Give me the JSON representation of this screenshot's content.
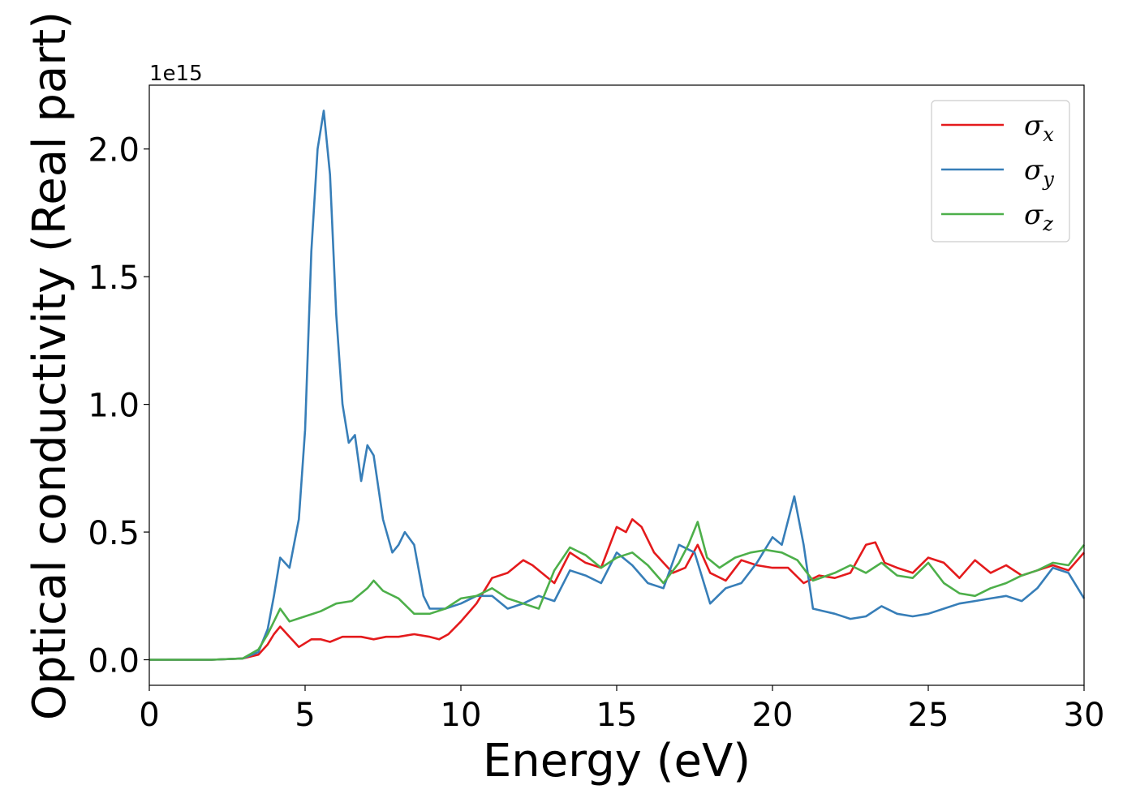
{
  "chart_data": {
    "type": "line",
    "xlabel": "Energy (eV)",
    "ylabel": "Optical conductivity (Real part)",
    "y_offset_label": "1e15",
    "y_scale": 1000000000000000.0,
    "xlim": [
      0,
      30
    ],
    "ylim": [
      -0.1,
      2.25
    ],
    "xticks": [
      0,
      5,
      10,
      15,
      20,
      25,
      30
    ],
    "xtick_labels": [
      "0",
      "5",
      "10",
      "15",
      "20",
      "25",
      "30"
    ],
    "yticks": [
      0.0,
      0.5,
      1.0,
      1.5,
      2.0
    ],
    "ytick_labels": [
      "0.0",
      "0.5",
      "1.0",
      "1.5",
      "2.0"
    ],
    "grid": false,
    "legend_position": "top-right",
    "series": [
      {
        "name": "σ",
        "subscript": "x",
        "color": "#e41a1c",
        "points": [
          [
            0,
            0.0
          ],
          [
            1,
            0.0
          ],
          [
            2,
            0.0
          ],
          [
            3,
            0.005
          ],
          [
            3.5,
            0.02
          ],
          [
            3.8,
            0.06
          ],
          [
            4.0,
            0.1
          ],
          [
            4.2,
            0.13
          ],
          [
            4.5,
            0.09
          ],
          [
            4.8,
            0.05
          ],
          [
            5.2,
            0.08
          ],
          [
            5.5,
            0.08
          ],
          [
            5.8,
            0.07
          ],
          [
            6.2,
            0.09
          ],
          [
            6.8,
            0.09
          ],
          [
            7.2,
            0.08
          ],
          [
            7.6,
            0.09
          ],
          [
            8.0,
            0.09
          ],
          [
            8.5,
            0.1
          ],
          [
            9.0,
            0.09
          ],
          [
            9.3,
            0.08
          ],
          [
            9.6,
            0.1
          ],
          [
            10.0,
            0.15
          ],
          [
            10.5,
            0.22
          ],
          [
            11.0,
            0.32
          ],
          [
            11.5,
            0.34
          ],
          [
            12.0,
            0.39
          ],
          [
            12.3,
            0.37
          ],
          [
            12.7,
            0.33
          ],
          [
            13.0,
            0.3
          ],
          [
            13.5,
            0.42
          ],
          [
            14.0,
            0.38
          ],
          [
            14.5,
            0.36
          ],
          [
            15.0,
            0.52
          ],
          [
            15.3,
            0.5
          ],
          [
            15.5,
            0.55
          ],
          [
            15.8,
            0.52
          ],
          [
            16.2,
            0.42
          ],
          [
            16.5,
            0.38
          ],
          [
            16.8,
            0.34
          ],
          [
            17.2,
            0.36
          ],
          [
            17.6,
            0.45
          ],
          [
            18.0,
            0.34
          ],
          [
            18.5,
            0.31
          ],
          [
            19.0,
            0.39
          ],
          [
            19.5,
            0.37
          ],
          [
            20.0,
            0.36
          ],
          [
            20.5,
            0.36
          ],
          [
            21.0,
            0.3
          ],
          [
            21.5,
            0.33
          ],
          [
            22.0,
            0.32
          ],
          [
            22.5,
            0.34
          ],
          [
            23.0,
            0.45
          ],
          [
            23.3,
            0.46
          ],
          [
            23.6,
            0.38
          ],
          [
            24.0,
            0.36
          ],
          [
            24.5,
            0.34
          ],
          [
            25.0,
            0.4
          ],
          [
            25.5,
            0.38
          ],
          [
            26.0,
            0.32
          ],
          [
            26.5,
            0.39
          ],
          [
            27.0,
            0.34
          ],
          [
            27.5,
            0.37
          ],
          [
            28.0,
            0.33
          ],
          [
            28.5,
            0.35
          ],
          [
            29.0,
            0.37
          ],
          [
            29.5,
            0.35
          ],
          [
            30.0,
            0.42
          ]
        ]
      },
      {
        "name": "σ",
        "subscript": "y",
        "color": "#377eb8",
        "points": [
          [
            0,
            0.0
          ],
          [
            1,
            0.0
          ],
          [
            2,
            0.0
          ],
          [
            3,
            0.005
          ],
          [
            3.5,
            0.03
          ],
          [
            3.8,
            0.12
          ],
          [
            4.0,
            0.25
          ],
          [
            4.2,
            0.4
          ],
          [
            4.5,
            0.36
          ],
          [
            4.8,
            0.55
          ],
          [
            5.0,
            0.9
          ],
          [
            5.2,
            1.6
          ],
          [
            5.4,
            2.0
          ],
          [
            5.6,
            2.15
          ],
          [
            5.8,
            1.9
          ],
          [
            6.0,
            1.35
          ],
          [
            6.2,
            1.0
          ],
          [
            6.4,
            0.85
          ],
          [
            6.6,
            0.88
          ],
          [
            6.8,
            0.7
          ],
          [
            7.0,
            0.84
          ],
          [
            7.2,
            0.8
          ],
          [
            7.5,
            0.55
          ],
          [
            7.8,
            0.42
          ],
          [
            8.0,
            0.45
          ],
          [
            8.2,
            0.5
          ],
          [
            8.5,
            0.45
          ],
          [
            8.8,
            0.25
          ],
          [
            9.0,
            0.2
          ],
          [
            9.5,
            0.2
          ],
          [
            10.0,
            0.22
          ],
          [
            10.5,
            0.25
          ],
          [
            11.0,
            0.25
          ],
          [
            11.5,
            0.2
          ],
          [
            12.0,
            0.22
          ],
          [
            12.5,
            0.25
          ],
          [
            13.0,
            0.23
          ],
          [
            13.5,
            0.35
          ],
          [
            14.0,
            0.33
          ],
          [
            14.5,
            0.3
          ],
          [
            15.0,
            0.42
          ],
          [
            15.5,
            0.37
          ],
          [
            16.0,
            0.3
          ],
          [
            16.5,
            0.28
          ],
          [
            17.0,
            0.45
          ],
          [
            17.5,
            0.42
          ],
          [
            18.0,
            0.22
          ],
          [
            18.5,
            0.28
          ],
          [
            19.0,
            0.3
          ],
          [
            19.5,
            0.38
          ],
          [
            20.0,
            0.48
          ],
          [
            20.3,
            0.45
          ],
          [
            20.7,
            0.64
          ],
          [
            21.0,
            0.45
          ],
          [
            21.3,
            0.2
          ],
          [
            22.0,
            0.18
          ],
          [
            22.5,
            0.16
          ],
          [
            23.0,
            0.17
          ],
          [
            23.5,
            0.21
          ],
          [
            24.0,
            0.18
          ],
          [
            24.5,
            0.17
          ],
          [
            25.0,
            0.18
          ],
          [
            25.5,
            0.2
          ],
          [
            26.0,
            0.22
          ],
          [
            26.5,
            0.23
          ],
          [
            27.0,
            0.24
          ],
          [
            27.5,
            0.25
          ],
          [
            28.0,
            0.23
          ],
          [
            28.5,
            0.28
          ],
          [
            29.0,
            0.36
          ],
          [
            29.5,
            0.34
          ],
          [
            30.0,
            0.24
          ]
        ]
      },
      {
        "name": "σ",
        "subscript": "z",
        "color": "#4daf4a",
        "points": [
          [
            0,
            0.0
          ],
          [
            1,
            0.0
          ],
          [
            2,
            0.0
          ],
          [
            3,
            0.005
          ],
          [
            3.5,
            0.04
          ],
          [
            3.8,
            0.1
          ],
          [
            4.0,
            0.15
          ],
          [
            4.2,
            0.2
          ],
          [
            4.5,
            0.15
          ],
          [
            5.0,
            0.17
          ],
          [
            5.5,
            0.19
          ],
          [
            6.0,
            0.22
          ],
          [
            6.5,
            0.23
          ],
          [
            7.0,
            0.28
          ],
          [
            7.2,
            0.31
          ],
          [
            7.5,
            0.27
          ],
          [
            8.0,
            0.24
          ],
          [
            8.5,
            0.18
          ],
          [
            9.0,
            0.18
          ],
          [
            9.5,
            0.2
          ],
          [
            10.0,
            0.24
          ],
          [
            10.5,
            0.25
          ],
          [
            11.0,
            0.28
          ],
          [
            11.5,
            0.24
          ],
          [
            12.0,
            0.22
          ],
          [
            12.5,
            0.2
          ],
          [
            13.0,
            0.35
          ],
          [
            13.5,
            0.44
          ],
          [
            14.0,
            0.41
          ],
          [
            14.5,
            0.36
          ],
          [
            15.0,
            0.4
          ],
          [
            15.5,
            0.42
          ],
          [
            16.0,
            0.37
          ],
          [
            16.5,
            0.3
          ],
          [
            17.0,
            0.38
          ],
          [
            17.3,
            0.45
          ],
          [
            17.6,
            0.54
          ],
          [
            17.9,
            0.4
          ],
          [
            18.3,
            0.36
          ],
          [
            18.8,
            0.4
          ],
          [
            19.3,
            0.42
          ],
          [
            19.8,
            0.43
          ],
          [
            20.3,
            0.42
          ],
          [
            20.8,
            0.39
          ],
          [
            21.3,
            0.31
          ],
          [
            22.0,
            0.34
          ],
          [
            22.5,
            0.37
          ],
          [
            23.0,
            0.34
          ],
          [
            23.5,
            0.38
          ],
          [
            24.0,
            0.33
          ],
          [
            24.5,
            0.32
          ],
          [
            25.0,
            0.38
          ],
          [
            25.5,
            0.3
          ],
          [
            26.0,
            0.26
          ],
          [
            26.5,
            0.25
          ],
          [
            27.0,
            0.28
          ],
          [
            27.5,
            0.3
          ],
          [
            28.0,
            0.33
          ],
          [
            28.5,
            0.35
          ],
          [
            29.0,
            0.38
          ],
          [
            29.5,
            0.37
          ],
          [
            30.0,
            0.45
          ]
        ]
      }
    ]
  }
}
